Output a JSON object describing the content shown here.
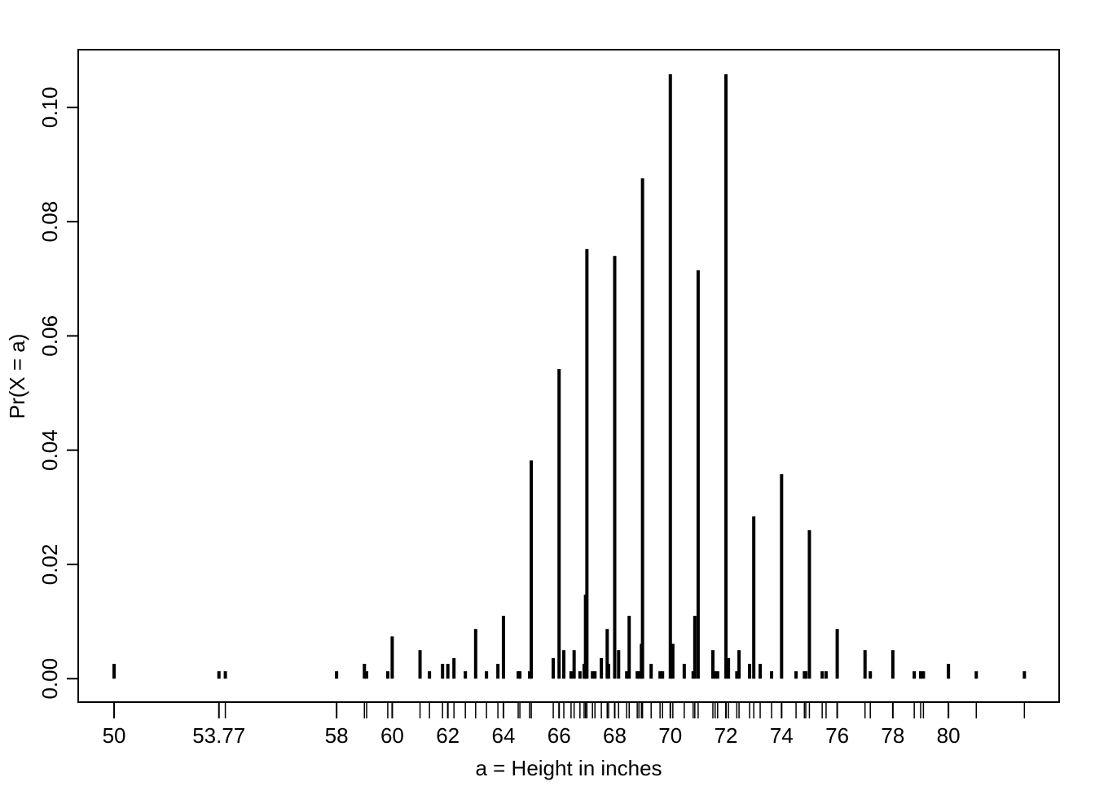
{
  "chart_data": {
    "type": "bar",
    "x_label": "a = Height in inches",
    "y_label": "Pr(X = a)",
    "x": [
      50,
      53.77,
      54,
      58,
      59,
      59.08,
      59.84,
      60,
      61,
      61.34,
      61.81,
      62,
      62.22,
      62.63,
      63,
      63.39,
      63.8,
      64,
      64.53,
      64.59,
      64.94,
      65,
      65.79,
      66,
      66.17,
      66.43,
      66.54,
      66.75,
      66.9,
      66.95,
      67,
      67.2,
      67.29,
      67.52,
      67.73,
      67.78,
      68,
      68.14,
      68.43,
      68.52,
      68.81,
      68.87,
      68.96,
      69,
      69.31,
      69.63,
      69.72,
      70,
      70.09,
      70.5,
      70.82,
      70.88,
      71,
      71.53,
      71.61,
      71.7,
      72,
      72.09,
      72.39,
      72.47,
      72.85,
      73,
      73.23,
      73.64,
      74,
      74.52,
      74.82,
      74.87,
      75,
      75.46,
      75.6,
      76,
      77,
      77.19,
      78,
      78.77,
      79,
      79.1,
      80,
      81,
      82.73
    ],
    "values": [
      0.0026,
      0.0013,
      0.0013,
      0.0013,
      0.0026,
      0.0013,
      0.0013,
      0.0074,
      0.005,
      0.0013,
      0.0026,
      0.0026,
      0.0036,
      0.0013,
      0.0087,
      0.0013,
      0.0026,
      0.011,
      0.0013,
      0.0013,
      0.0013,
      0.0382,
      0.0036,
      0.0542,
      0.005,
      0.0013,
      0.005,
      0.0013,
      0.0026,
      0.0147,
      0.0752,
      0.0013,
      0.0013,
      0.0036,
      0.0087,
      0.0026,
      0.074,
      0.005,
      0.0013,
      0.011,
      0.0013,
      0.0013,
      0.0061,
      0.0876,
      0.0026,
      0.0013,
      0.0013,
      0.1058,
      0.0061,
      0.0026,
      0.0013,
      0.011,
      0.0715,
      0.005,
      0.0013,
      0.0013,
      0.1058,
      0.0036,
      0.0013,
      0.005,
      0.0026,
      0.0284,
      0.0026,
      0.0013,
      0.0358,
      0.0013,
      0.0013,
      0.0013,
      0.026,
      0.0013,
      0.0013,
      0.0087,
      0.005,
      0.0013,
      0.005,
      0.0013,
      0.0013,
      0.0013,
      0.0026,
      0.0013,
      0.0013
    ],
    "color": "#000000",
    "rug": true,
    "xlim": [
      48.71,
      83.98
    ],
    "ylim": [
      -0.0041,
      0.1101
    ],
    "xticks": [
      50,
      53.77,
      58,
      60,
      62,
      64,
      66,
      68,
      70,
      72,
      74,
      76,
      78,
      80
    ],
    "yticks": [
      {
        "value": 0,
        "label": "0.00"
      },
      0.02,
      0.04,
      0.06,
      0.08,
      {
        "value": 0.1,
        "label": "0.10"
      }
    ]
  }
}
